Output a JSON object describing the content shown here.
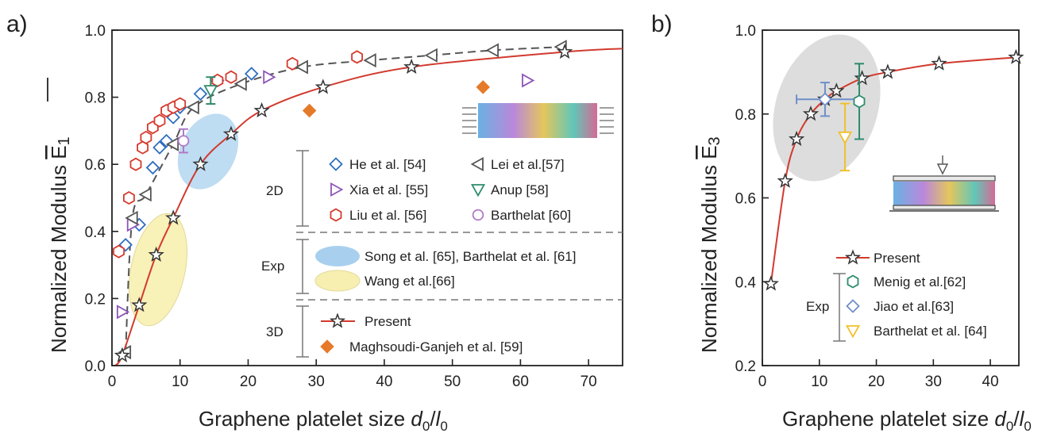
{
  "chart_data": [
    {
      "panel": "a)",
      "type": "scatter",
      "xlabel": "Graphene platelet size d0/l0",
      "ylabel": "Normalized Modulus E1",
      "xlim": [
        0,
        75
      ],
      "ylim": [
        0,
        1.0
      ],
      "xticks": [
        "0",
        "10",
        "20",
        "30",
        "40",
        "50",
        "60",
        "70"
      ],
      "yticks": [
        "0.0",
        "0.2",
        "0.4",
        "0.6",
        "0.8",
        "1.0"
      ],
      "grid": false,
      "legend_placement": "center-right",
      "legend_groups": [
        "2D",
        "Exp",
        "3D"
      ],
      "series": [
        {
          "name": "He et al. [54]",
          "group": "2D",
          "marker": "diamond",
          "color": "#2f6fbf",
          "points": [
            [
              2,
              0.36
            ],
            [
              4,
              0.42
            ],
            [
              6,
              0.59
            ],
            [
              7,
              0.65
            ],
            [
              8,
              0.67
            ],
            [
              9,
              0.74
            ],
            [
              10,
              0.77
            ],
            [
              13,
              0.81
            ],
            [
              15.5,
              0.85
            ],
            [
              20.5,
              0.87
            ]
          ]
        },
        {
          "name": "Xia et al. [55]",
          "group": "2D",
          "marker": "triangle-right",
          "color": "#8e56b8",
          "points": [
            [
              1.5,
              0.16
            ],
            [
              3,
              0.42
            ],
            [
              23,
              0.86
            ],
            [
              61,
              0.85
            ]
          ]
        },
        {
          "name": "Liu et al. [56]",
          "group": "2D",
          "marker": "hexagon",
          "color": "#d63a2d",
          "points": [
            [
              1,
              0.34
            ],
            [
              2.5,
              0.5
            ],
            [
              3.5,
              0.6
            ],
            [
              4.5,
              0.65
            ],
            [
              5,
              0.68
            ],
            [
              6,
              0.71
            ],
            [
              7,
              0.73
            ],
            [
              8,
              0.76
            ],
            [
              9,
              0.77
            ],
            [
              10,
              0.78
            ],
            [
              15.5,
              0.85
            ],
            [
              17.5,
              0.86
            ],
            [
              26.5,
              0.9
            ],
            [
              36,
              0.92
            ]
          ]
        },
        {
          "name": "Lei et al.[57]",
          "group": "2D",
          "marker": "triangle-left",
          "color": "#555555",
          "points": [
            [
              2,
              0.04
            ],
            [
              3,
              0.44
            ],
            [
              5,
              0.51
            ],
            [
              9,
              0.66
            ],
            [
              12,
              0.77
            ],
            [
              19,
              0.84
            ],
            [
              28,
              0.89
            ],
            [
              38,
              0.91
            ],
            [
              47,
              0.925
            ],
            [
              56,
              0.94
            ],
            [
              66,
              0.95
            ]
          ]
        },
        {
          "name": "Anup [58]",
          "group": "2D",
          "marker": "triangle-down",
          "color": "#2e8b6e",
          "points": [
            [
              14.5,
              0.82
            ]
          ],
          "error": [
            0.04
          ]
        },
        {
          "name": "Barthelat [60]",
          "group": "2D",
          "marker": "circle",
          "color": "#b07ac8",
          "points": [
            [
              10.5,
              0.67
            ]
          ],
          "error": [
            0.035
          ]
        },
        {
          "name": "Song et al. [65], Barthelat et al. [61]",
          "group": "Exp",
          "marker": "ellipse",
          "color": "#a8d0ee"
        },
        {
          "name": "Wang et al.[66]",
          "group": "Exp",
          "marker": "ellipse",
          "color": "#f7efb0"
        },
        {
          "name": "Present",
          "group": "3D",
          "marker": "star",
          "color": "#d23a2e",
          "points": [
            [
              1.5,
              0.03
            ],
            [
              4,
              0.18
            ],
            [
              6.5,
              0.33
            ],
            [
              9,
              0.44
            ],
            [
              13,
              0.6
            ],
            [
              17.5,
              0.69
            ],
            [
              22,
              0.76
            ],
            [
              31,
              0.83
            ],
            [
              44,
              0.89
            ],
            [
              66.5,
              0.935
            ]
          ]
        },
        {
          "name": "Maghsoudi-Ganjeh et al. [59]",
          "group": "3D",
          "marker": "diamond-filled",
          "color": "#e57a2b",
          "points": [
            [
              29,
              0.76
            ],
            [
              54.5,
              0.83
            ]
          ]
        }
      ]
    },
    {
      "panel": "b)",
      "type": "scatter",
      "xlabel": "Graphene platelet size d0/l0",
      "ylabel": "Normalized Modulus E3",
      "xlim": [
        0,
        45
      ],
      "ylim": [
        0.2,
        1.0
      ],
      "xticks": [
        "0",
        "10",
        "20",
        "30",
        "40"
      ],
      "yticks": [
        "0.2",
        "0.4",
        "0.6",
        "0.8",
        "1.0"
      ],
      "grid": false,
      "legend_placement": "bottom-right",
      "legend_groups": [
        "Exp"
      ],
      "series": [
        {
          "name": "Present",
          "marker": "star",
          "color": "#d23a2e",
          "points": [
            [
              1.5,
              0.395
            ],
            [
              4,
              0.64
            ],
            [
              6,
              0.74
            ],
            [
              8.5,
              0.8
            ],
            [
              11,
              0.835
            ],
            [
              13,
              0.855
            ],
            [
              17.5,
              0.885
            ],
            [
              22,
              0.9
            ],
            [
              31,
              0.92
            ],
            [
              44.5,
              0.935
            ]
          ]
        },
        {
          "name": "Menig et al.[62]",
          "group": "Exp",
          "marker": "hexagon",
          "color": "#2e8b6e",
          "points": [
            [
              17,
              0.83
            ]
          ],
          "error": [
            0.09
          ]
        },
        {
          "name": "Jiao et al.[63]",
          "group": "Exp",
          "marker": "diamond",
          "color": "#6f8fc9",
          "points": [
            [
              11,
              0.835
            ]
          ],
          "error": [
            0.04
          ],
          "xerror": [
            5
          ]
        },
        {
          "name": "Barthelat et al. [64]",
          "group": "Exp",
          "marker": "triangle-down",
          "color": "#f0c02a",
          "points": [
            [
              14.5,
              0.745
            ]
          ],
          "error": [
            0.08
          ]
        }
      ]
    }
  ]
}
